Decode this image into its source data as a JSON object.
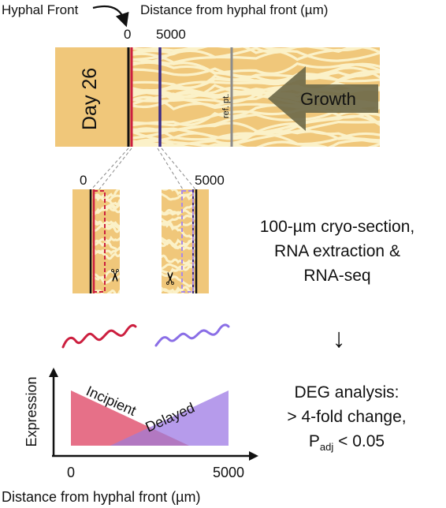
{
  "header": {
    "hyphal_front_label": "Hyphal Front",
    "distance_label": "Distance from hyphal front (µm)",
    "tick_0": "0",
    "tick_5000": "5000"
  },
  "colony": {
    "day_label": "Day 26",
    "ref_label": "ref. pt.",
    "growth_label": "Growth"
  },
  "sections": {
    "left_tick": "0",
    "right_tick": "5000"
  },
  "steps": {
    "cryo_line1": "100-µm cryo-section,",
    "cryo_line2": "RNA extraction &",
    "cryo_line3": "RNA-seq",
    "arrow": "↓",
    "deg_line1": "DEG analysis:",
    "deg_line2": "> 4-fold change,",
    "deg_p": "P",
    "deg_sub": "adj",
    "deg_rest": " < 0.05"
  },
  "plot": {
    "ylabel": "Expression",
    "xlabel": "Distance from hyphal front (µm)",
    "x_tick_0": "0",
    "x_tick_5000": "5000",
    "incipient_label": "Incipient",
    "delayed_label": "Delayed"
  },
  "colors": {
    "agar": "#f0c77a",
    "hyphae": "#fbf1c8",
    "front_line": "#cc1f3f",
    "delayed_line": "#3b2a86",
    "incipient_fill": "#e0506e",
    "delayed_fill": "#a98ae8",
    "growth_arrow": "#6f6a4a",
    "ref_line": "#8c8c8c"
  }
}
